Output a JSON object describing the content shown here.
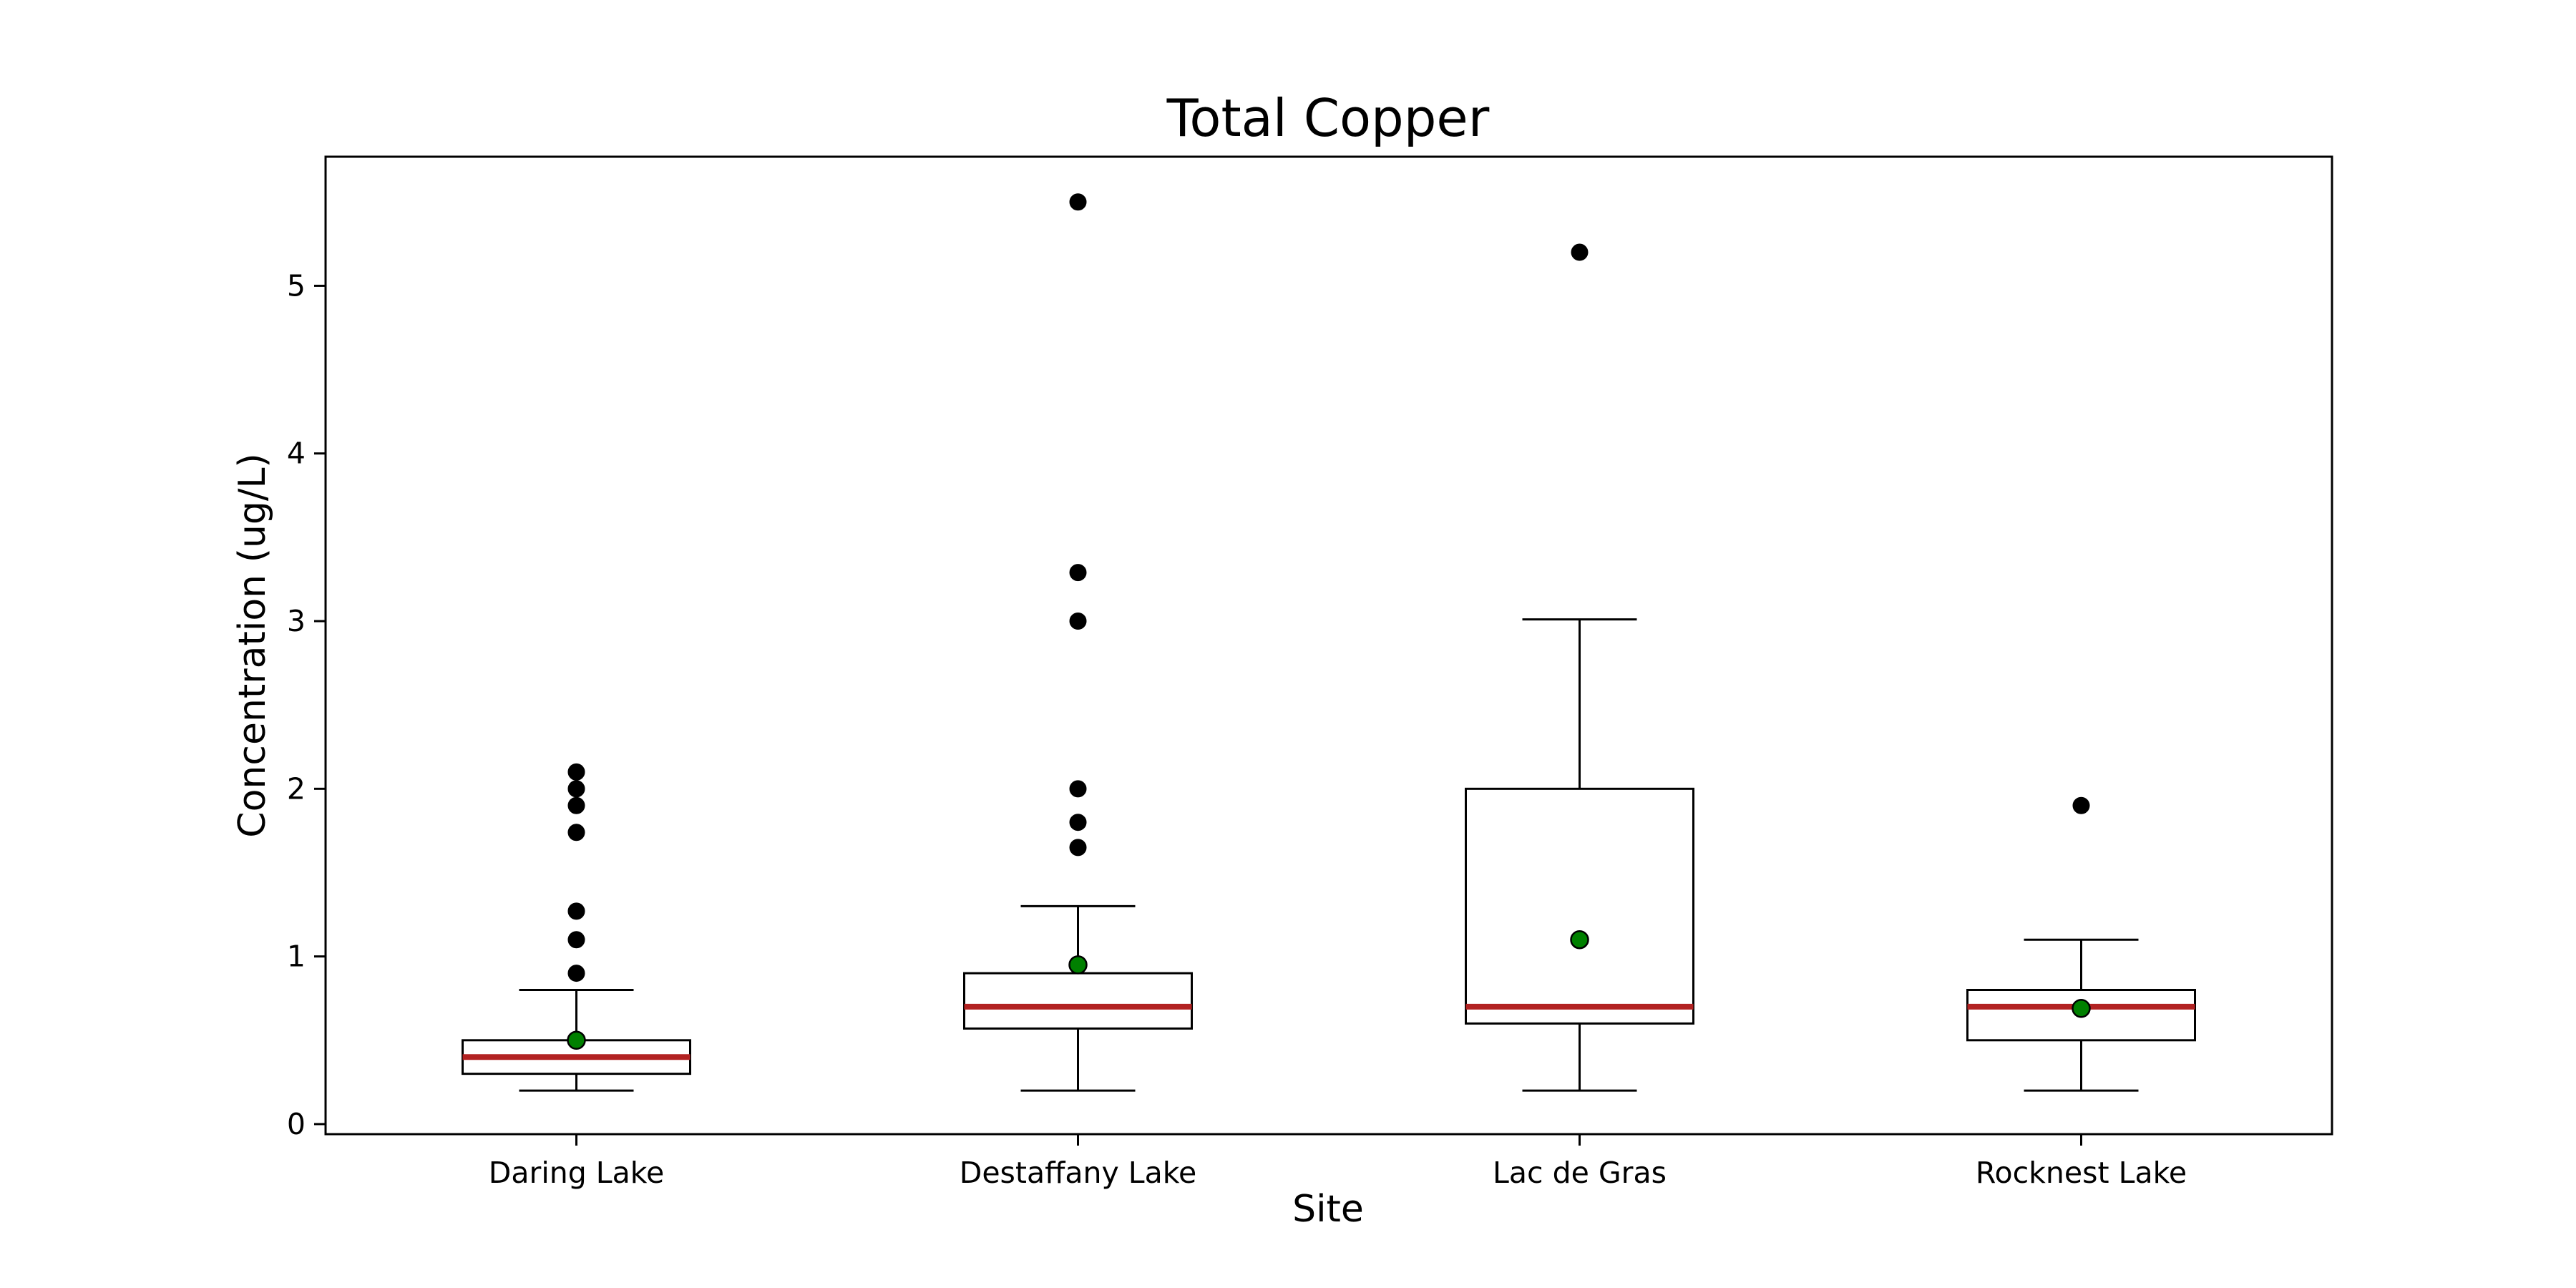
{
  "chart_data": {
    "type": "box",
    "title": "Total Copper",
    "xlabel": "Site",
    "ylabel": "Concentration (ug/L)",
    "categories": [
      "Daring Lake",
      "Destaffany Lake",
      "Lac de Gras",
      "Rocknest Lake"
    ],
    "yticks": [
      0,
      1,
      2,
      3,
      4,
      5
    ],
    "ylim": [
      -0.06,
      5.77
    ],
    "grid": false,
    "colors": {
      "median": "#b22222",
      "mean": "#008000",
      "outlier": "#000000",
      "box": "#000000"
    },
    "boxes": [
      {
        "whisker_low": 0.2,
        "q1": 0.3,
        "median": 0.4,
        "q3": 0.5,
        "whisker_high": 0.8,
        "mean": 0.5,
        "outliers": [
          0.9,
          1.1,
          1.27,
          1.74,
          1.9,
          2.0,
          2.1
        ]
      },
      {
        "whisker_low": 0.2,
        "q1": 0.57,
        "median": 0.7,
        "q3": 0.9,
        "whisker_high": 1.3,
        "mean": 0.95,
        "outliers": [
          1.65,
          1.8,
          2.0,
          3.0,
          3.29,
          5.5
        ]
      },
      {
        "whisker_low": 0.2,
        "q1": 0.6,
        "median": 0.7,
        "q3": 2.0,
        "whisker_high": 3.01,
        "mean": 1.1,
        "outliers": [
          5.2
        ]
      },
      {
        "whisker_low": 0.2,
        "q1": 0.5,
        "median": 0.7,
        "q3": 0.8,
        "whisker_high": 1.1,
        "mean": 0.69,
        "outliers": [
          1.9
        ]
      }
    ]
  }
}
